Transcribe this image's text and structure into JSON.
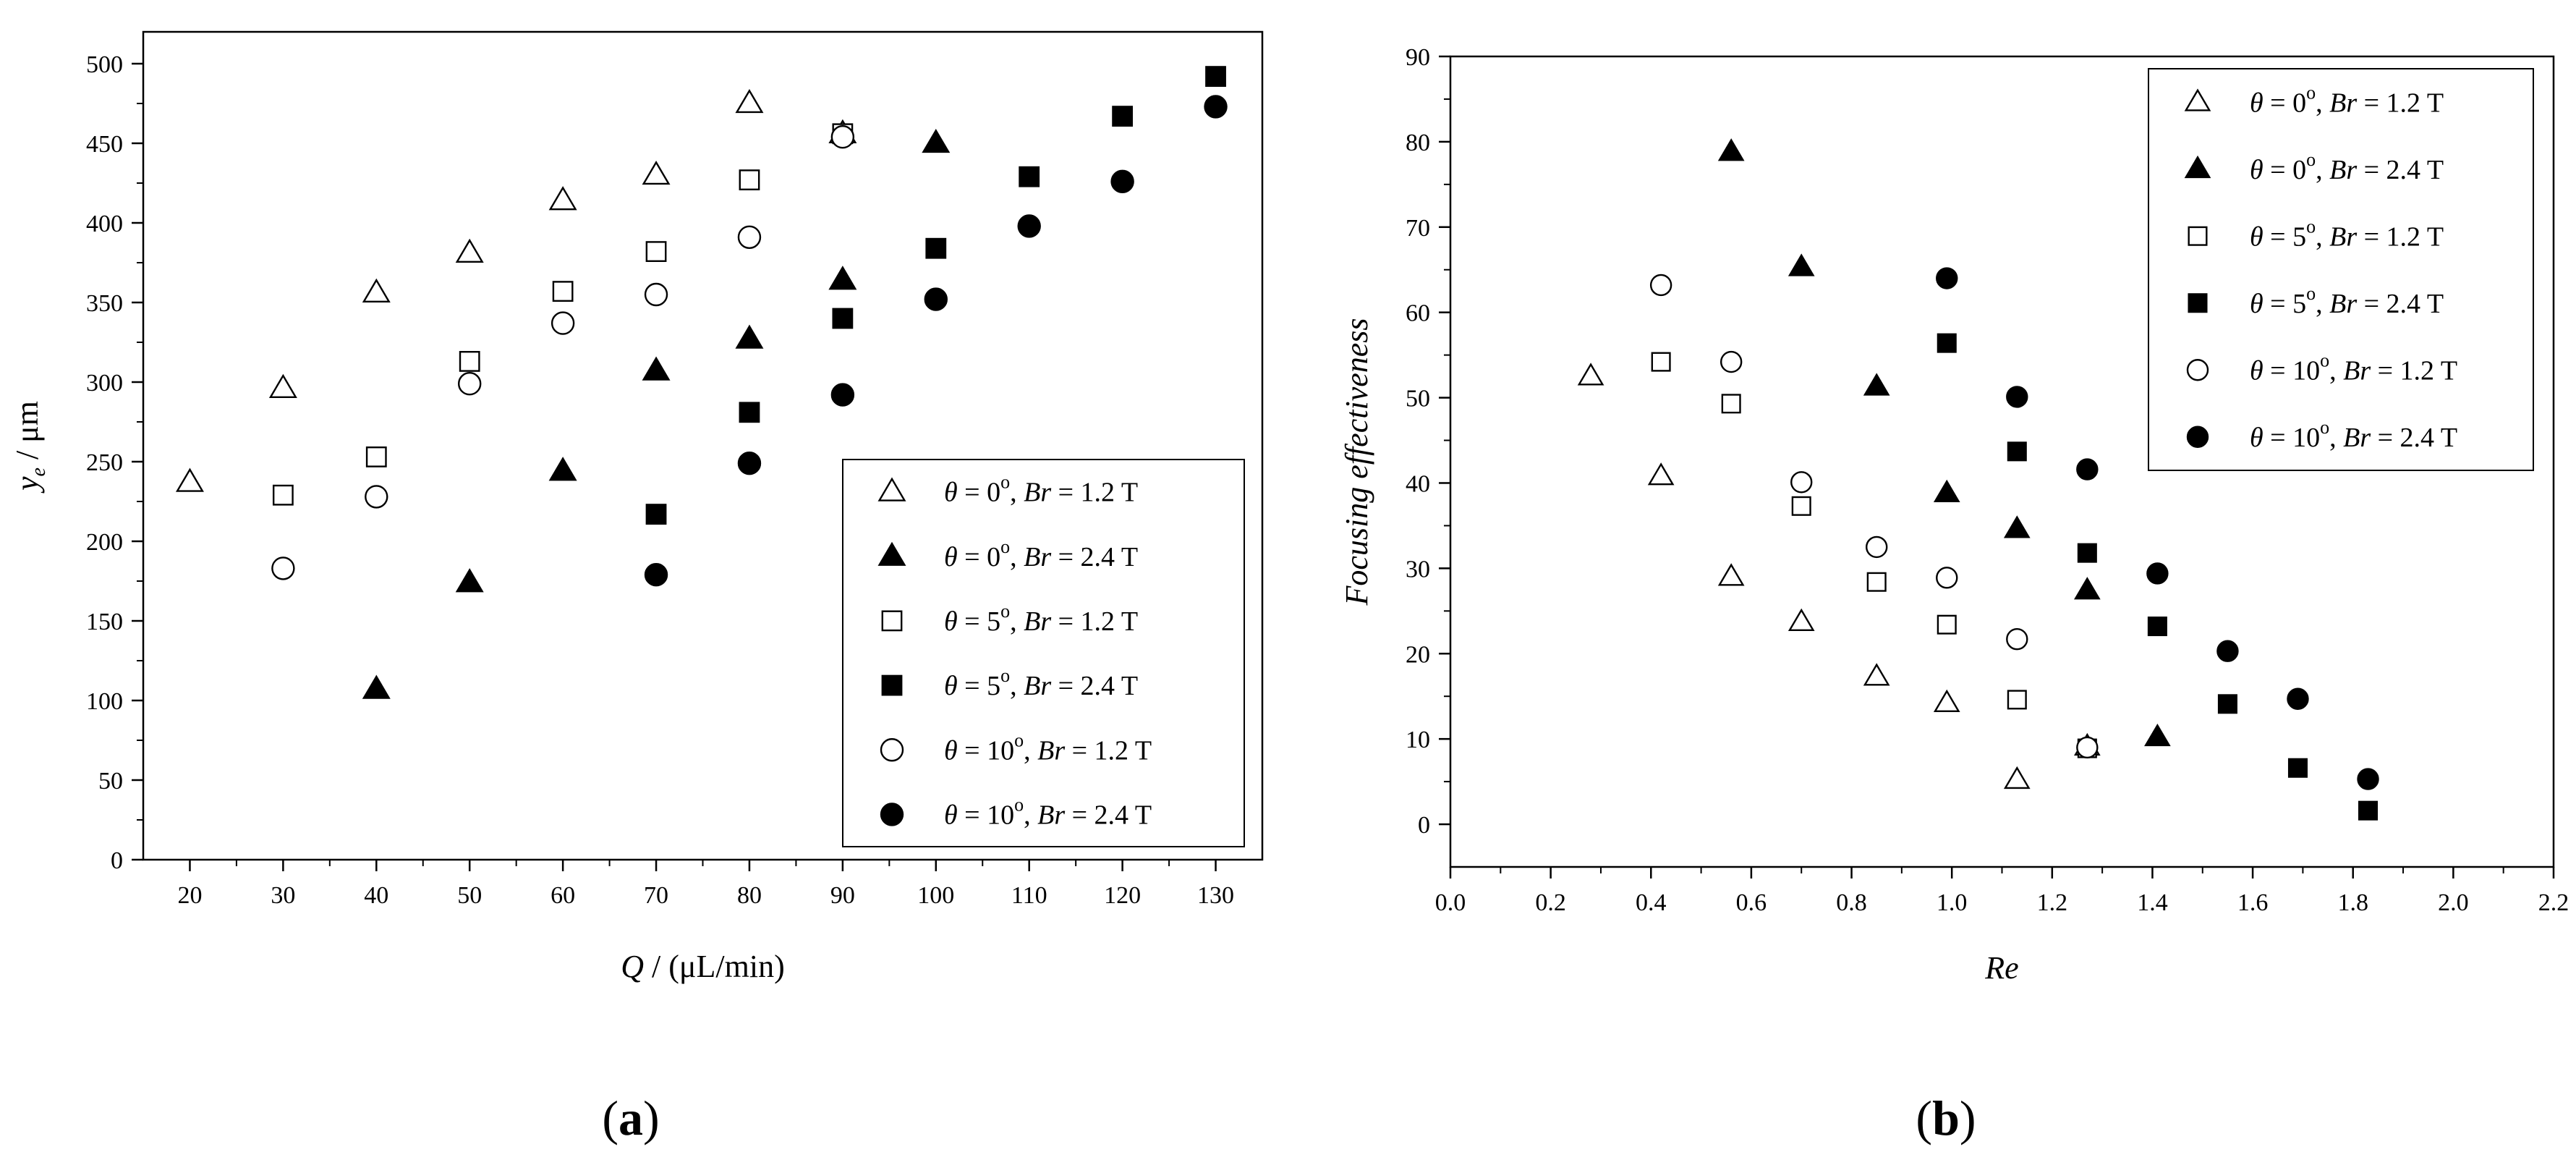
{
  "chart_data": [
    {
      "type": "scatter",
      "panel_label": {
        "open": "(",
        "letter": "a",
        "close": ")"
      },
      "xlabel": {
        "var": "Q",
        "rest": " / (μL/min)"
      },
      "ylabel": {
        "var": "y",
        "sub": "e",
        "rest": " / μm"
      },
      "xlim": [
        15,
        135
      ],
      "ylim": [
        0,
        520
      ],
      "xticks": [
        20,
        30,
        40,
        50,
        60,
        70,
        80,
        90,
        100,
        110,
        120,
        130
      ],
      "yticks": [
        0,
        50,
        100,
        150,
        200,
        250,
        300,
        350,
        400,
        450,
        500
      ],
      "legend_position": "bottom-right",
      "series": [
        {
          "name": {
            "angle": "0",
            "br": "1.2 T"
          },
          "marker": "triangle",
          "filled": false,
          "points": [
            [
              20,
              237
            ],
            [
              30,
              296
            ],
            [
              40,
              356
            ],
            [
              50,
              381
            ],
            [
              60,
              414
            ],
            [
              70,
              430
            ],
            [
              80,
              475
            ],
            [
              90,
              456
            ]
          ]
        },
        {
          "name": {
            "angle": "0",
            "br": "2.4 T"
          },
          "marker": "triangle",
          "filled": true,
          "points": [
            [
              40,
              107
            ],
            [
              50,
              174
            ],
            [
              60,
              244
            ],
            [
              70,
              307
            ],
            [
              80,
              327
            ],
            [
              90,
              364
            ],
            [
              100,
              450
            ]
          ]
        },
        {
          "name": {
            "angle": "5",
            "br": "1.2 T"
          },
          "marker": "square",
          "filled": false,
          "points": [
            [
              30,
              229
            ],
            [
              40,
              253
            ],
            [
              50,
              313
            ],
            [
              60,
              357
            ],
            [
              70,
              382
            ],
            [
              80,
              427
            ],
            [
              90,
              456
            ]
          ]
        },
        {
          "name": {
            "angle": "5",
            "br": "2.4 T"
          },
          "marker": "square",
          "filled": true,
          "points": [
            [
              70,
              217
            ],
            [
              80,
              281
            ],
            [
              90,
              340
            ],
            [
              100,
              384
            ],
            [
              110,
              429
            ],
            [
              120,
              467
            ],
            [
              130,
              492
            ]
          ]
        },
        {
          "name": {
            "angle": "10",
            "br": "1.2 T"
          },
          "marker": "circle",
          "filled": false,
          "points": [
            [
              30,
              183
            ],
            [
              40,
              228
            ],
            [
              50,
              299
            ],
            [
              60,
              337
            ],
            [
              70,
              355
            ],
            [
              80,
              391
            ],
            [
              90,
              454
            ]
          ]
        },
        {
          "name": {
            "angle": "10",
            "br": "2.4 T"
          },
          "marker": "circle",
          "filled": true,
          "points": [
            [
              70,
              179
            ],
            [
              80,
              249
            ],
            [
              90,
              292
            ],
            [
              100,
              352
            ],
            [
              110,
              398
            ],
            [
              120,
              426
            ],
            [
              130,
              473
            ]
          ]
        }
      ]
    },
    {
      "type": "scatter",
      "panel_label": {
        "open": "(",
        "letter": "b",
        "close": ")"
      },
      "xlabel": {
        "var": "Re",
        "rest": ""
      },
      "ylabel": {
        "text": "Focusing effectiveness"
      },
      "xlim": [
        0.0,
        2.2
      ],
      "ylim": [
        -5,
        90
      ],
      "xticks": [
        "0.0",
        "0.2",
        "0.4",
        "0.6",
        "0.8",
        "1.0",
        "1.2",
        "1.4",
        "1.6",
        "1.8",
        "2.0",
        "2.2"
      ],
      "yticks": [
        0,
        10,
        20,
        30,
        40,
        50,
        60,
        70,
        80,
        90
      ],
      "legend_position": "top-right",
      "series": [
        {
          "name": {
            "angle": "0",
            "br": "1.2 T"
          },
          "marker": "triangle",
          "filled": false,
          "points": [
            [
              0.28,
              52.5
            ],
            [
              0.42,
              40.8
            ],
            [
              0.56,
              29.0
            ],
            [
              0.7,
              23.7
            ],
            [
              0.85,
              17.3
            ],
            [
              0.99,
              14.2
            ],
            [
              1.13,
              5.2
            ],
            [
              1.27,
              9.1
            ]
          ]
        },
        {
          "name": {
            "angle": "0",
            "br": "2.4 T"
          },
          "marker": "triangle",
          "filled": true,
          "points": [
            [
              0.56,
              78.8
            ],
            [
              0.7,
              65.3
            ],
            [
              0.85,
              51.3
            ],
            [
              0.99,
              38.8
            ],
            [
              1.13,
              34.6
            ],
            [
              1.27,
              27.4
            ],
            [
              1.41,
              10.2
            ]
          ]
        },
        {
          "name": {
            "angle": "5",
            "br": "1.2 T"
          },
          "marker": "square",
          "filled": false,
          "points": [
            [
              0.42,
              54.2
            ],
            [
              0.56,
              49.3
            ],
            [
              0.7,
              37.3
            ],
            [
              0.85,
              28.4
            ],
            [
              0.99,
              23.4
            ],
            [
              1.13,
              14.6
            ],
            [
              1.27,
              8.9
            ]
          ]
        },
        {
          "name": {
            "angle": "5",
            "br": "2.4 T"
          },
          "marker": "square",
          "filled": true,
          "points": [
            [
              0.99,
              56.4
            ],
            [
              1.13,
              43.7
            ],
            [
              1.27,
              31.8
            ],
            [
              1.41,
              23.2
            ],
            [
              1.55,
              14.1
            ],
            [
              1.69,
              6.6
            ],
            [
              1.83,
              1.6
            ]
          ]
        },
        {
          "name": {
            "angle": "10",
            "br": "1.2 T"
          },
          "marker": "circle",
          "filled": false,
          "points": [
            [
              0.42,
              63.2
            ],
            [
              0.56,
              54.2
            ],
            [
              0.7,
              40.1
            ],
            [
              0.85,
              32.5
            ],
            [
              0.99,
              28.9
            ],
            [
              1.13,
              21.7
            ],
            [
              1.27,
              9.0
            ]
          ]
        },
        {
          "name": {
            "angle": "10",
            "br": "2.4 T"
          },
          "marker": "circle",
          "filled": true,
          "points": [
            [
              0.99,
              64.0
            ],
            [
              1.13,
              50.1
            ],
            [
              1.27,
              41.6
            ],
            [
              1.41,
              29.4
            ],
            [
              1.55,
              20.3
            ],
            [
              1.69,
              14.7
            ],
            [
              1.83,
              5.3
            ]
          ]
        }
      ]
    }
  ],
  "legend_format": {
    "theta": "θ",
    "eq": " = ",
    "deg": "o",
    "br_var": "Br",
    "comma": ", "
  }
}
